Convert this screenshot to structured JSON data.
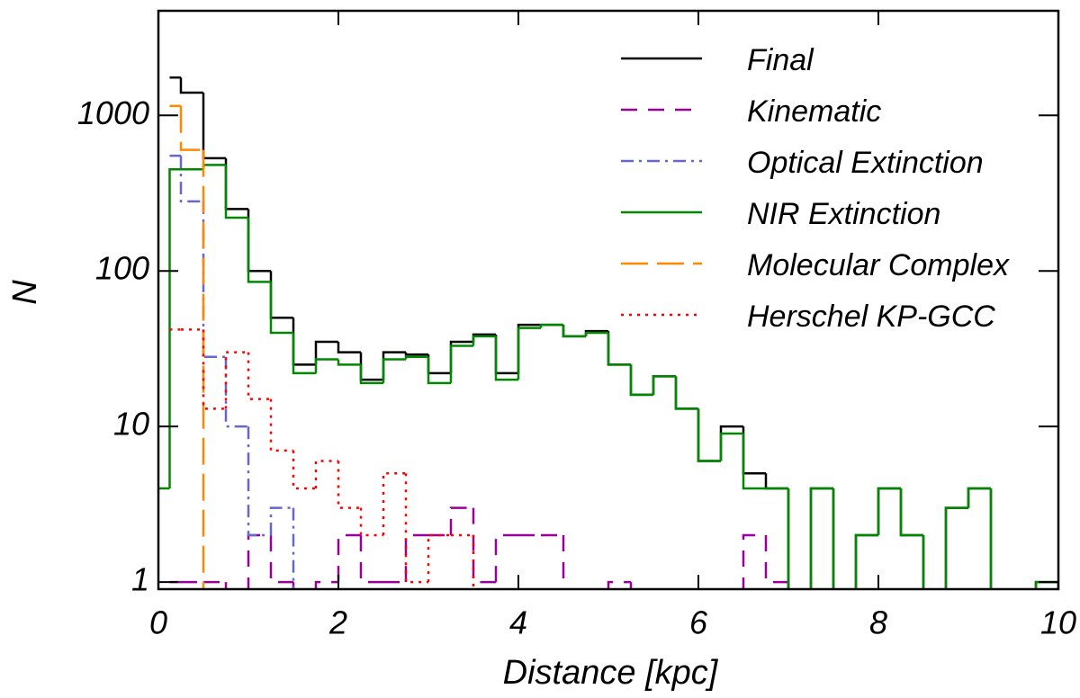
{
  "chart_data": {
    "type": "histogram",
    "xlabel": "Distance [kpc]",
    "ylabel": "N",
    "log_y": true,
    "xlim": [
      0,
      10
    ],
    "ylim": [
      0.9,
      4700
    ],
    "xticks": [
      0,
      2,
      4,
      6,
      8,
      10
    ],
    "yticks": [
      1,
      10,
      100,
      1000
    ],
    "legend": "upper right",
    "bins": [
      0,
      0.125,
      0.25,
      0.5,
      0.75,
      1.0,
      1.25,
      1.5,
      1.75,
      2.0,
      2.25,
      2.5,
      2.75,
      3.0,
      3.25,
      3.5,
      3.75,
      4.0,
      4.25,
      4.5,
      4.75,
      5.0,
      5.25,
      5.5,
      5.75,
      6.0,
      6.25,
      6.5,
      6.75,
      7.0,
      7.25,
      7.5,
      7.75,
      8.0,
      8.25,
      8.5,
      8.75,
      9.0,
      9.25,
      9.5,
      9.75,
      10.0
    ],
    "series": [
      {
        "name": "Final",
        "color": "#000000",
        "linestyle": "solid",
        "values": [
          null,
          1750,
          1400,
          530,
          250,
          100,
          50,
          25,
          35,
          30,
          20,
          30,
          29,
          22,
          35,
          39,
          22,
          45,
          45,
          38,
          41,
          25,
          16,
          21,
          13,
          6,
          10,
          5,
          4,
          0,
          4,
          0,
          2,
          4,
          2,
          0,
          3,
          4,
          0,
          0,
          1
        ]
      },
      {
        "name": "Kinematic",
        "color": "#990099",
        "linestyle": "dashed",
        "values": [
          null,
          1,
          1,
          1,
          0,
          2,
          1,
          0,
          1,
          2,
          1,
          1,
          2,
          2,
          3,
          1,
          2,
          2,
          2,
          0,
          0,
          1,
          0,
          0,
          0,
          0,
          0,
          2,
          1,
          0,
          null,
          null,
          null,
          null,
          null,
          null,
          null,
          null,
          null,
          null,
          null
        ]
      },
      {
        "name": "Optical Extinction",
        "color": "#6666cc",
        "linestyle": "dashdot",
        "values": [
          null,
          550,
          280,
          28,
          10,
          2,
          3,
          0,
          null,
          null,
          null,
          null,
          null,
          null,
          null,
          null,
          null,
          null,
          null,
          null,
          null,
          null,
          null,
          null,
          null,
          null,
          null,
          null,
          null,
          null,
          null,
          null,
          null,
          null,
          null,
          null,
          null,
          null,
          null,
          null,
          null
        ]
      },
      {
        "name": "NIR Extinction",
        "color": "#008800",
        "linestyle": "solid",
        "values": [
          4,
          450,
          450,
          480,
          220,
          85,
          40,
          22,
          27,
          25,
          19,
          27,
          28,
          19,
          33,
          38,
          20,
          43,
          45,
          38,
          40,
          25,
          16,
          21,
          13,
          6,
          9,
          4,
          4,
          0,
          4,
          0,
          2,
          4,
          2,
          0,
          3,
          4,
          0,
          0,
          1
        ]
      },
      {
        "name": "Molecular Complex",
        "color": "#ff8800",
        "linestyle": "longdash",
        "values": [
          null,
          1150,
          600,
          0,
          null,
          null,
          null,
          null,
          null,
          null,
          null,
          null,
          null,
          null,
          null,
          null,
          null,
          null,
          null,
          null,
          null,
          null,
          null,
          null,
          null,
          null,
          null,
          null,
          null,
          null,
          null,
          null,
          null,
          null,
          null,
          null,
          null,
          null,
          null,
          null,
          null
        ]
      },
      {
        "name": "Herschel KP-GCC",
        "color": "#ff0000",
        "linestyle": "dotted",
        "values": [
          null,
          42,
          42,
          13,
          30,
          15,
          7,
          4,
          6,
          3,
          2,
          5,
          1,
          2,
          2,
          0,
          null,
          null,
          null,
          null,
          null,
          null,
          null,
          null,
          null,
          null,
          null,
          null,
          null,
          null,
          null,
          null,
          null,
          null,
          null,
          null,
          null,
          null,
          null,
          null,
          null
        ]
      }
    ]
  }
}
